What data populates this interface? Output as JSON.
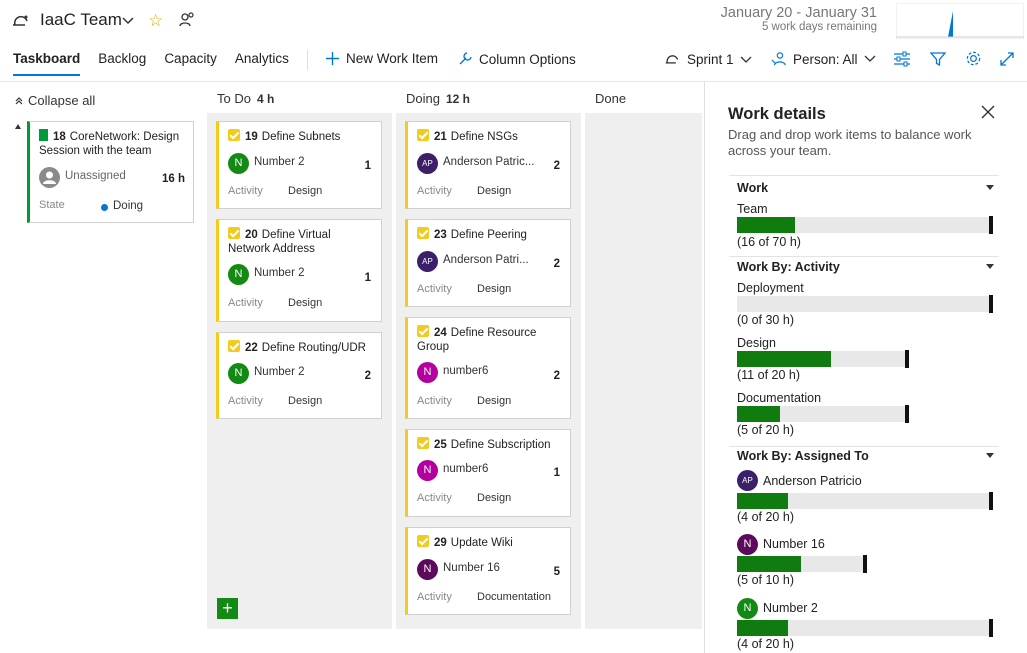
{
  "header": {
    "team_name": "IaaC Team",
    "date_range": "January 20 - January 31",
    "days_remaining": "5 work days remaining",
    "tabs": [
      "Taskboard",
      "Backlog",
      "Capacity",
      "Analytics"
    ],
    "new_work_item": "New Work Item",
    "column_options": "Column Options",
    "sprint": "Sprint 1",
    "person_filter": "Person: All"
  },
  "board": {
    "collapse_all": "Collapse all",
    "columns": [
      {
        "name": "To Do",
        "hours": "4 h"
      },
      {
        "name": "Doing",
        "hours": "12 h"
      },
      {
        "name": "Done",
        "hours": ""
      }
    ],
    "story": {
      "id": "18",
      "title": "CoreNetwork: Design Session with the team",
      "assignee": "Unassigned",
      "hours": "16 h",
      "state_label": "State",
      "state": "Doing"
    },
    "todo": [
      {
        "id": "19",
        "title": "Define Subnets",
        "person": "Number 2",
        "initials": "N",
        "color": "#138a13",
        "hours": "1",
        "activity_label": "Activity",
        "activity": "Design"
      },
      {
        "id": "20",
        "title": "Define Virtual Network Address",
        "person": "Number 2",
        "initials": "N",
        "color": "#138a13",
        "hours": "1",
        "activity_label": "Activity",
        "activity": "Design"
      },
      {
        "id": "22",
        "title": "Define Routing/UDR",
        "person": "Number 2",
        "initials": "N",
        "color": "#138a13",
        "hours": "2",
        "activity_label": "Activity",
        "activity": "Design"
      }
    ],
    "doing": [
      {
        "id": "21",
        "title": "Define NSGs",
        "person": "Anderson Patric...",
        "initials": "AP",
        "color": "#3b2069",
        "hours": "2",
        "activity_label": "Activity",
        "activity": "Design"
      },
      {
        "id": "23",
        "title": "Define Peering",
        "person": "Anderson Patri...",
        "initials": "AP",
        "color": "#3b2069",
        "hours": "2",
        "activity_label": "Activity",
        "activity": "Design"
      },
      {
        "id": "24",
        "title": "Define Resource Group",
        "person": "number6",
        "initials": "N",
        "color": "#b4009e",
        "hours": "2",
        "activity_label": "Activity",
        "activity": "Design"
      },
      {
        "id": "25",
        "title": "Define Subscription",
        "person": "number6",
        "initials": "N",
        "color": "#b4009e",
        "hours": "1",
        "activity_label": "Activity",
        "activity": "Design"
      },
      {
        "id": "29",
        "title": "Update Wiki",
        "person": "Number 16",
        "initials": "N",
        "color": "#5c0b5c",
        "hours": "5",
        "activity_label": "Activity",
        "activity": "Documentation"
      }
    ]
  },
  "panel": {
    "title": "Work details",
    "subtitle": "Drag and drop work items to balance work across your team.",
    "work_section": "Work",
    "team_label": "Team",
    "team_note": "(16 of 70 h)",
    "team_fraction": 0.229,
    "activity_section": "Work By: Activity",
    "activities": [
      {
        "name": "Deployment",
        "note": "(0 of 30 h)",
        "fraction": 0.0,
        "capacity_scale": 1.0
      },
      {
        "name": "Design",
        "note": "(11 of 20 h)",
        "fraction": 0.55,
        "capacity_scale": 0.667
      },
      {
        "name": "Documentation",
        "note": "(5 of 20 h)",
        "fraction": 0.25,
        "capacity_scale": 0.667
      }
    ],
    "assigned_section": "Work By: Assigned To",
    "assignees": [
      {
        "name": "Anderson Patricio",
        "initials": "AP",
        "color": "#3b2069",
        "note": "(4 of 20 h)",
        "fraction": 0.2,
        "capacity_scale": 1.0
      },
      {
        "name": "Number 16",
        "initials": "N",
        "color": "#5c0b5c",
        "note": "(5 of 10 h)",
        "fraction": 0.5,
        "capacity_scale": 0.5
      },
      {
        "name": "Number 2",
        "initials": "N",
        "color": "#138a13",
        "note": "(4 of 20 h)",
        "fraction": 0.2,
        "capacity_scale": 1.0
      }
    ]
  }
}
